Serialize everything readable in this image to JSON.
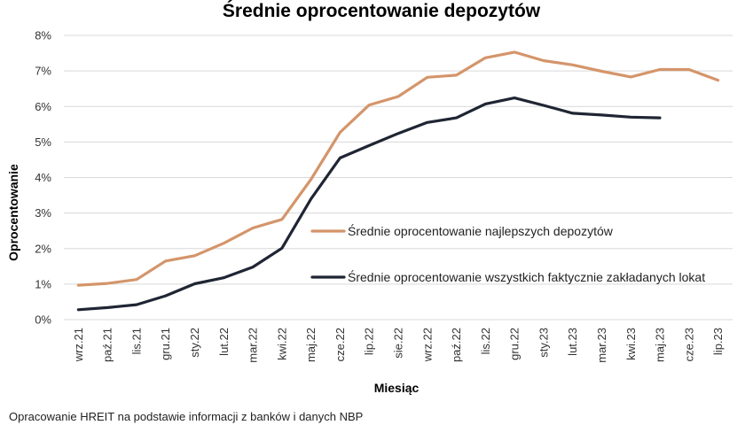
{
  "chart_data": {
    "type": "line",
    "title": "Średnie oprocentowanie depozytów",
    "xlabel": "Miesiąc",
    "ylabel": "Oprocentowanie",
    "ylim": [
      0,
      8
    ],
    "y_ticks": [
      "0%",
      "1%",
      "2%",
      "3%",
      "4%",
      "5%",
      "6%",
      "7%",
      "8%"
    ],
    "grid": "horizontal",
    "legend_position": "center-right",
    "categories": [
      "wrz.21",
      "paź.21",
      "lis.21",
      "gru.21",
      "sty.22",
      "lut.22",
      "mar.22",
      "kwi.22",
      "maj.22",
      "cze.22",
      "lip.22",
      "sie.22",
      "wrz.22",
      "paź.22",
      "lis.22",
      "gru.22",
      "sty.23",
      "lut.23",
      "mar.23",
      "kwi.23",
      "maj.23",
      "cze.23",
      "lip.23"
    ],
    "series": [
      {
        "name": "Średnie oprocentowanie najlepszych depozytów",
        "color": "#D4956A",
        "values": [
          0.97,
          1.02,
          1.13,
          1.65,
          1.8,
          2.15,
          2.58,
          2.82,
          3.95,
          5.27,
          6.04,
          6.28,
          6.82,
          6.88,
          7.37,
          7.53,
          7.29,
          7.17,
          6.99,
          6.83,
          7.04,
          7.04,
          6.74
        ]
      },
      {
        "name": "Średnie oprocentowanie wszystkich faktycznie zakładanych lokat",
        "color": "#1F2533",
        "values": [
          0.28,
          0.34,
          0.42,
          0.67,
          1.01,
          1.18,
          1.48,
          2.01,
          3.4,
          4.55,
          4.9,
          5.24,
          5.55,
          5.68,
          6.07,
          6.24,
          6.03,
          5.81,
          5.76,
          5.7,
          5.68,
          null,
          null
        ]
      }
    ]
  },
  "source_note": "Opracowanie HREIT na podstawie informacji z banków i danych NBP"
}
